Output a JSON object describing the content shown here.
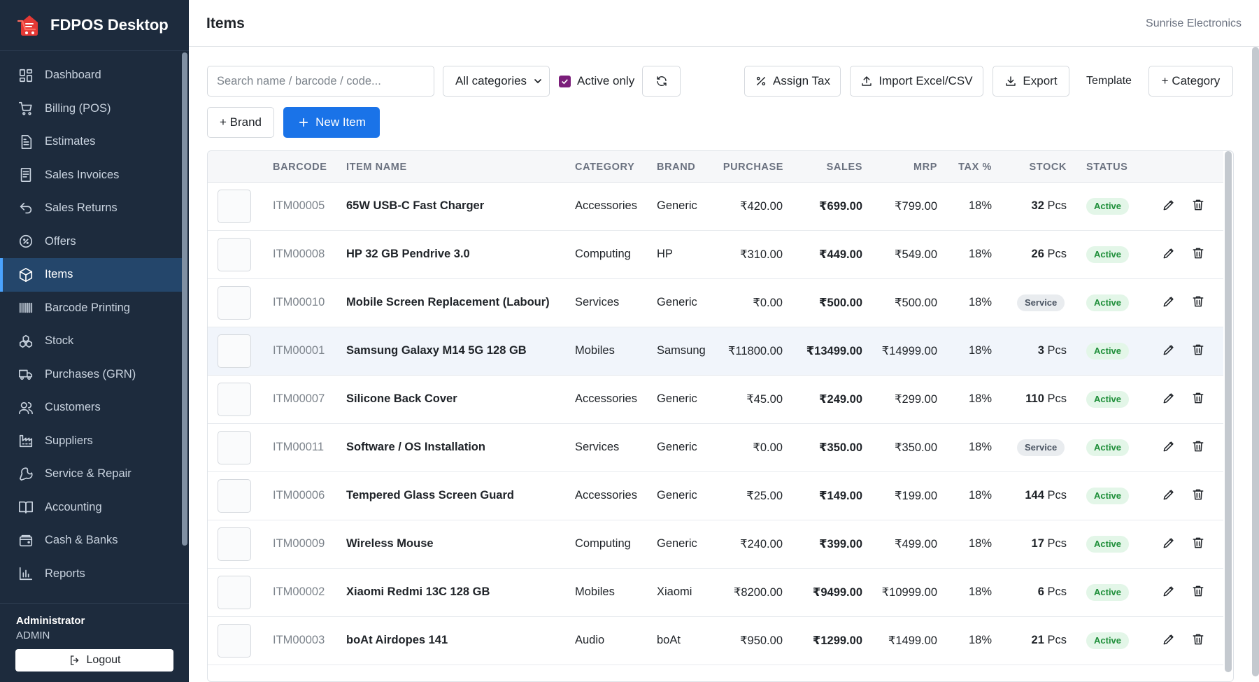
{
  "app": {
    "name": "FDPOS Desktop",
    "company": "Sunrise Electronics"
  },
  "page": {
    "title": "Items"
  },
  "sidebar": {
    "items": [
      {
        "label": "Dashboard",
        "icon": "dashboard-icon"
      },
      {
        "label": "Billing (POS)",
        "icon": "cart-icon"
      },
      {
        "label": "Estimates",
        "icon": "document-icon"
      },
      {
        "label": "Sales Invoices",
        "icon": "invoice-icon"
      },
      {
        "label": "Sales Returns",
        "icon": "return-icon"
      },
      {
        "label": "Offers",
        "icon": "percent-badge-icon"
      },
      {
        "label": "Items",
        "icon": "box-icon"
      },
      {
        "label": "Barcode Printing",
        "icon": "barcode-icon"
      },
      {
        "label": "Stock",
        "icon": "stock-icon"
      },
      {
        "label": "Purchases (GRN)",
        "icon": "truck-icon"
      },
      {
        "label": "Customers",
        "icon": "users-icon"
      },
      {
        "label": "Suppliers",
        "icon": "factory-icon"
      },
      {
        "label": "Service & Repair",
        "icon": "wrench-icon"
      },
      {
        "label": "Accounting",
        "icon": "book-icon"
      },
      {
        "label": "Cash & Banks",
        "icon": "wallet-icon"
      },
      {
        "label": "Reports",
        "icon": "chart-icon"
      }
    ],
    "active_index": 6,
    "user": {
      "name": "Administrator",
      "role": "ADMIN"
    },
    "logout_label": "Logout"
  },
  "toolbar": {
    "search_placeholder": "Search name / barcode / code...",
    "category_select": "All categories",
    "active_only_label": "Active only",
    "active_only_checked": true,
    "assign_tax_label": "Assign Tax",
    "import_label": "Import Excel/CSV",
    "export_label": "Export",
    "template_label": "Template",
    "category_label": "+ Category",
    "brand_label": "+ Brand",
    "new_item_label": "New Item"
  },
  "table": {
    "columns": [
      "BARCODE",
      "ITEM NAME",
      "CATEGORY",
      "BRAND",
      "PURCHASE",
      "SALES",
      "MRP",
      "TAX %",
      "STOCK",
      "STATUS"
    ],
    "rows": [
      {
        "barcode": "ITM00005",
        "name": "65W USB-C Fast Charger",
        "category": "Accessories",
        "brand": "Generic",
        "purchase": "₹420.00",
        "sales": "₹699.00",
        "mrp": "₹799.00",
        "tax": "18%",
        "stock_qty": "32",
        "stock_unit": "Pcs",
        "service": "",
        "status": "Active"
      },
      {
        "barcode": "ITM00008",
        "name": "HP 32 GB Pendrive 3.0",
        "category": "Computing",
        "brand": "HP",
        "purchase": "₹310.00",
        "sales": "₹449.00",
        "mrp": "₹549.00",
        "tax": "18%",
        "stock_qty": "26",
        "stock_unit": "Pcs",
        "service": "",
        "status": "Active"
      },
      {
        "barcode": "ITM00010",
        "name": "Mobile Screen Replacement (Labour)",
        "category": "Services",
        "brand": "Generic",
        "purchase": "₹0.00",
        "sales": "₹500.00",
        "mrp": "₹500.00",
        "tax": "18%",
        "stock_qty": "",
        "stock_unit": "",
        "service": "Service",
        "status": "Active"
      },
      {
        "barcode": "ITM00001",
        "name": "Samsung Galaxy M14 5G 128 GB",
        "category": "Mobiles",
        "brand": "Samsung",
        "purchase": "₹11800.00",
        "sales": "₹13499.00",
        "mrp": "₹14999.00",
        "tax": "18%",
        "stock_qty": "3",
        "stock_unit": "Pcs",
        "service": "",
        "status": "Active"
      },
      {
        "barcode": "ITM00007",
        "name": "Silicone Back Cover",
        "category": "Accessories",
        "brand": "Generic",
        "purchase": "₹45.00",
        "sales": "₹249.00",
        "mrp": "₹299.00",
        "tax": "18%",
        "stock_qty": "110",
        "stock_unit": "Pcs",
        "service": "",
        "status": "Active"
      },
      {
        "barcode": "ITM00011",
        "name": "Software / OS Installation",
        "category": "Services",
        "brand": "Generic",
        "purchase": "₹0.00",
        "sales": "₹350.00",
        "mrp": "₹350.00",
        "tax": "18%",
        "stock_qty": "",
        "stock_unit": "",
        "service": "Service",
        "status": "Active"
      },
      {
        "barcode": "ITM00006",
        "name": "Tempered Glass Screen Guard",
        "category": "Accessories",
        "brand": "Generic",
        "purchase": "₹25.00",
        "sales": "₹149.00",
        "mrp": "₹199.00",
        "tax": "18%",
        "stock_qty": "144",
        "stock_unit": "Pcs",
        "service": "",
        "status": "Active"
      },
      {
        "barcode": "ITM00009",
        "name": "Wireless Mouse",
        "category": "Computing",
        "brand": "Generic",
        "purchase": "₹240.00",
        "sales": "₹399.00",
        "mrp": "₹499.00",
        "tax": "18%",
        "stock_qty": "17",
        "stock_unit": "Pcs",
        "service": "",
        "status": "Active"
      },
      {
        "barcode": "ITM00002",
        "name": "Xiaomi Redmi 13C 128 GB",
        "category": "Mobiles",
        "brand": "Xiaomi",
        "purchase": "₹8200.00",
        "sales": "₹9499.00",
        "mrp": "₹10999.00",
        "tax": "18%",
        "stock_qty": "6",
        "stock_unit": "Pcs",
        "service": "",
        "status": "Active"
      },
      {
        "barcode": "ITM00003",
        "name": "boAt Airdopes 141",
        "category": "Audio",
        "brand": "boAt",
        "purchase": "₹950.00",
        "sales": "₹1299.00",
        "mrp": "₹1499.00",
        "tax": "18%",
        "stock_qty": "21",
        "stock_unit": "Pcs",
        "service": "",
        "status": "Active"
      }
    ],
    "highlighted_row": 3
  },
  "colors": {
    "sidebar_bg": "#1d2b3d",
    "sidebar_active": "#24466b",
    "primary": "#1a73e8",
    "active_badge_bg": "#e3f6e8",
    "active_badge_text": "#1f8f3a",
    "checkbox": "#7b1e7a"
  }
}
